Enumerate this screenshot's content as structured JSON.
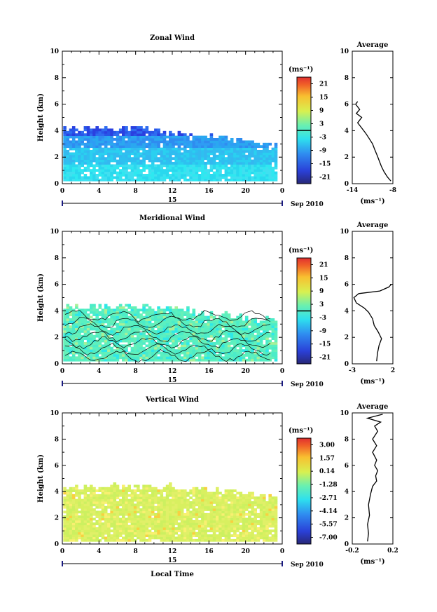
{
  "chart_data": [
    {
      "type": "heatmap",
      "title": "Zonal Wind",
      "ylabel": "Height (km)",
      "xlim": [
        0,
        24
      ],
      "ylim": [
        0,
        10
      ],
      "xticks": [
        "0",
        "4",
        "8",
        "12",
        "16",
        "20",
        "0"
      ],
      "yticks": [
        "0",
        "2",
        "4",
        "6",
        "8",
        "10"
      ],
      "date_day": "15",
      "date_month": "Sep 2010",
      "colorbar": {
        "unit": "(ms⁻¹)",
        "ticks": [
          "21",
          "15",
          "9",
          "3",
          "-3",
          "-9",
          "-15",
          "-21"
        ]
      },
      "average": {
        "title": "Average",
        "xlabel": "(ms⁻¹)",
        "xticks": [
          "-14",
          "-8"
        ],
        "xlim": [
          -14,
          -8
        ],
        "yticks": [
          "0",
          "2",
          "4",
          "6",
          "8",
          "10"
        ],
        "profile": [
          [
            -8.3,
            0.2
          ],
          [
            -8.8,
            0.5
          ],
          [
            -9.3,
            0.9
          ],
          [
            -9.7,
            1.3
          ],
          [
            -10.0,
            1.7
          ],
          [
            -10.3,
            2.1
          ],
          [
            -10.7,
            2.6
          ],
          [
            -11.0,
            3.0
          ],
          [
            -11.5,
            3.4
          ],
          [
            -12.0,
            3.8
          ],
          [
            -12.6,
            4.2
          ],
          [
            -13.2,
            4.6
          ],
          [
            -12.6,
            5.0
          ],
          [
            -13.4,
            5.3
          ],
          [
            -12.9,
            5.6
          ],
          [
            -13.5,
            6.0
          ],
          [
            -13.2,
            6.2
          ]
        ]
      }
    },
    {
      "type": "heatmap",
      "title": "Meridional Wind",
      "ylabel": "Height (km)",
      "xlim": [
        0,
        24
      ],
      "ylim": [
        0,
        10
      ],
      "xticks": [
        "0",
        "4",
        "8",
        "12",
        "16",
        "20",
        "0"
      ],
      "yticks": [
        "0",
        "2",
        "4",
        "6",
        "8",
        "10"
      ],
      "date_day": "15",
      "date_month": "Sep 2010",
      "colorbar": {
        "unit": "(ms⁻¹)",
        "ticks": [
          "21",
          "15",
          "9",
          "3",
          "-3",
          "-9",
          "-15",
          "-21"
        ]
      },
      "average": {
        "title": "Average",
        "xlabel": "(ms⁻¹)",
        "xticks": [
          "-3",
          "2"
        ],
        "xlim": [
          -3,
          2
        ],
        "yticks": [
          "0",
          "2",
          "4",
          "6",
          "8",
          "10"
        ],
        "profile": [
          [
            0,
            0.2
          ],
          [
            0.1,
            0.8
          ],
          [
            0.3,
            1.4
          ],
          [
            0.6,
            1.9
          ],
          [
            0.2,
            2.4
          ],
          [
            -0.3,
            2.9
          ],
          [
            -0.5,
            3.4
          ],
          [
            -1.0,
            3.9
          ],
          [
            -1.5,
            4.2
          ],
          [
            -2.5,
            4.6
          ],
          [
            -2.8,
            5.0
          ],
          [
            -2.2,
            5.3
          ],
          [
            0.4,
            5.5
          ],
          [
            1.5,
            5.8
          ],
          [
            1.8,
            6.0
          ]
        ]
      }
    },
    {
      "type": "heatmap",
      "title": "Vertical Wind",
      "ylabel": "Height (km)",
      "xlabel": "Local Time",
      "xlim": [
        0,
        24
      ],
      "ylim": [
        0,
        10
      ],
      "xticks": [
        "0",
        "4",
        "8",
        "12",
        "16",
        "20",
        "0"
      ],
      "yticks": [
        "0",
        "2",
        "4",
        "6",
        "8",
        "10"
      ],
      "date_day": "15",
      "date_month": "Sep 2010",
      "colorbar": {
        "unit": "(ms⁻¹)",
        "ticks": [
          "3.00",
          "1.57",
          "0.14",
          "-1.28",
          "-2.71",
          "-4.14",
          "-5.57",
          "-7.00"
        ]
      },
      "average": {
        "title": "Average",
        "xlabel": "(ms⁻¹)",
        "xticks": [
          "-0.2",
          "0.2"
        ],
        "xlim": [
          -0.2,
          0.2
        ],
        "yticks": [
          "0",
          "2",
          "4",
          "6",
          "8",
          "10"
        ],
        "profile": [
          [
            -0.05,
            0.2
          ],
          [
            -0.04,
            0.8
          ],
          [
            -0.05,
            1.5
          ],
          [
            -0.03,
            2.2
          ],
          [
            -0.04,
            3.0
          ],
          [
            -0.02,
            3.8
          ],
          [
            0.0,
            4.4
          ],
          [
            0.04,
            4.8
          ],
          [
            0.03,
            5.2
          ],
          [
            0.05,
            5.6
          ],
          [
            0.02,
            6.0
          ],
          [
            0.04,
            6.4
          ],
          [
            0.0,
            7.0
          ],
          [
            0.04,
            7.5
          ],
          [
            0.0,
            8.0
          ],
          [
            0.05,
            8.6
          ],
          [
            0.02,
            9.0
          ],
          [
            0.08,
            9.3
          ],
          [
            -0.05,
            9.6
          ],
          [
            0.1,
            9.9
          ]
        ]
      }
    }
  ]
}
